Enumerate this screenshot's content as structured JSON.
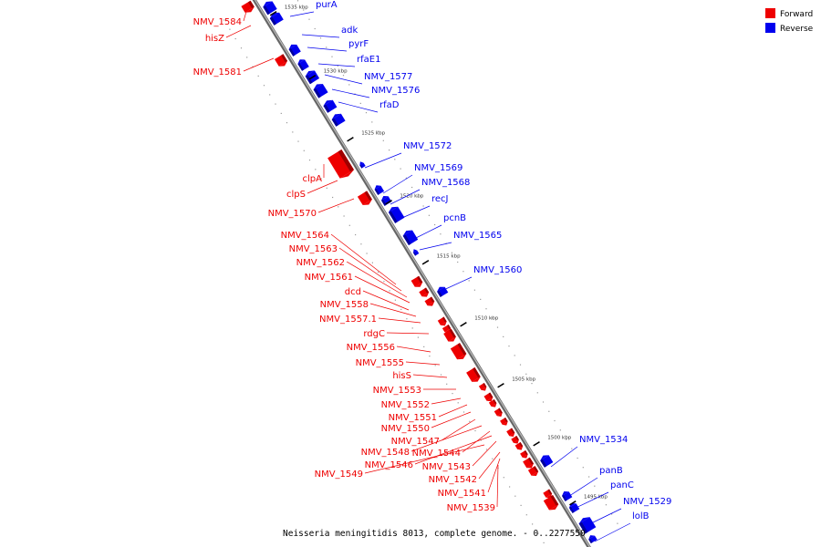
{
  "caption": "Neisseria meningitidis 8013, complete genome. - 0..2277550",
  "legend": [
    {
      "label": "Forward",
      "color": "#ee0000"
    },
    {
      "label": "Reverse",
      "color": "#0000ee"
    }
  ],
  "colors": {
    "forward": "#ee0000",
    "reverse": "#0000ee",
    "backbone": "#888888"
  },
  "ticks": [
    "1535 kbp",
    "1530 kbp",
    "1525 kbp",
    "1520 kbp",
    "1515 kbp",
    "1510 kbp",
    "1505 kbp",
    "1500 kbp",
    "1495 kbp"
  ],
  "reverse_genes": [
    "purA",
    "adk",
    "pyrF",
    "rfaE1",
    "NMV_1577",
    "NMV_1576",
    "rfaD",
    "NMV_1572",
    "NMV_1569",
    "NMV_1568",
    "recJ",
    "pcnB",
    "NMV_1565",
    "NMV_1560",
    "NMV_1534",
    "panB",
    "panC",
    "NMV_1529",
    "lolB"
  ],
  "forward_genes": [
    "NMV_1584",
    "hisZ",
    "NMV_1581",
    "clpA",
    "clpS",
    "NMV_1570",
    "NMV_1564",
    "NMV_1563",
    "NMV_1562",
    "NMV_1561",
    "dcd",
    "NMV_1558",
    "NMV_1557.1",
    "rdgC",
    "NMV_1556",
    "NMV_1555",
    "hisS",
    "NMV_1553",
    "NMV_1552",
    "NMV_1551",
    "NMV_1550",
    "NMV_1547",
    "NMV_1548",
    "NMV_1544",
    "NMV_1546",
    "NMV_1543",
    "NMV_1549",
    "NMV_1542",
    "NMV_1541",
    "NMV_1539"
  ]
}
